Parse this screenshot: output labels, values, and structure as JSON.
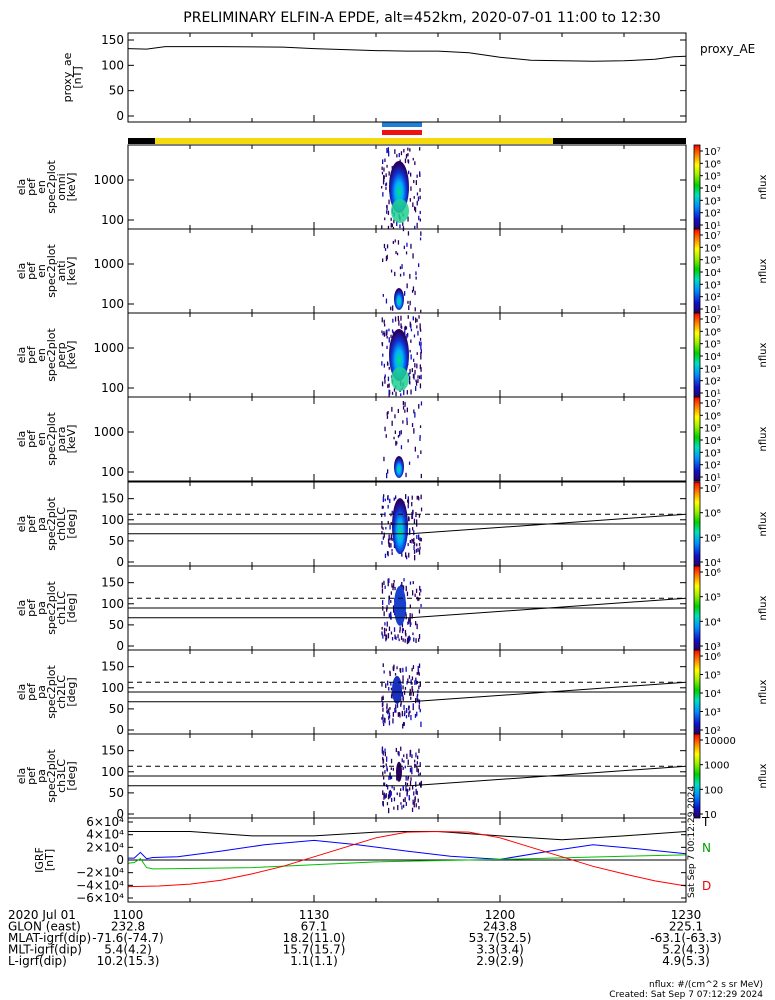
{
  "title": "PRELIMINARY ELFIN-A EPDE, alt=452km, 2020-07-01 11:00 to 12:30",
  "chart_data": {
    "type": "line",
    "x_range": [
      "11:00",
      "12:30"
    ],
    "x_ticks": [
      "1100",
      "1130",
      "1200",
      "1230"
    ],
    "panels": [
      {
        "id": "proxy_ae",
        "ylabel": [
          "proxy_ae",
          "[nT]"
        ],
        "yticks": [
          "150",
          "100",
          "50",
          "0"
        ],
        "ylim": [
          0,
          150
        ],
        "legend": "proxy_AE",
        "series": [
          {
            "name": "proxy_AE",
            "x_min": [
              0,
              3,
              6,
              15,
              25,
              30,
              40,
              45,
              50,
              55,
              60,
              65,
              70,
              75,
              80,
              85,
              88,
              90
            ],
            "values": [
              133,
              132,
              137,
              137,
              136,
              133,
              129,
              128,
              128,
              125,
              116,
              110,
              109,
              108,
              109,
              112,
              117,
              118
            ]
          }
        ]
      },
      {
        "id": "en_spec_omni",
        "ylabel": [
          "ela",
          "pef",
          "en",
          "spec2plot",
          "omni",
          "[keV]"
        ],
        "yticks": [
          "1000",
          "100"
        ],
        "cb_labels": [
          "10⁷",
          "10⁶",
          "10⁵",
          "10⁴",
          "10³",
          "10²",
          "10¹"
        ],
        "cb_title": "nflux"
      },
      {
        "id": "en_spec_anti",
        "ylabel": [
          "ela",
          "pef",
          "en",
          "spec2plot",
          "anti",
          "[keV]"
        ],
        "yticks": [
          "1000",
          "100"
        ],
        "cb_labels": [
          "10⁷",
          "10⁶",
          "10⁵",
          "10⁴",
          "10³",
          "10²",
          "10¹"
        ],
        "cb_title": "nflux"
      },
      {
        "id": "en_spec_perp",
        "ylabel": [
          "ela",
          "pef",
          "en",
          "spec2plot",
          "perp",
          "[keV]"
        ],
        "yticks": [
          "1000",
          "100"
        ],
        "cb_labels": [
          "10⁷",
          "10⁶",
          "10⁵",
          "10⁴",
          "10³",
          "10²",
          "10¹"
        ],
        "cb_title": "nflux"
      },
      {
        "id": "en_spec_para",
        "ylabel": [
          "ela",
          "pef",
          "en",
          "spec2plot",
          "para",
          "[keV]"
        ],
        "yticks": [
          "1000",
          "100"
        ],
        "cb_labels": [
          "10⁷",
          "10⁶",
          "10⁵",
          "10⁴",
          "10³",
          "10²",
          "10¹"
        ],
        "cb_title": "nflux"
      },
      {
        "id": "pa_ch0",
        "ylabel": [
          "ela",
          "pef",
          "pa",
          "spec2plot",
          "ch0LC",
          "[deg]"
        ],
        "yticks": [
          "150",
          "100",
          "50",
          "0"
        ],
        "ylim": [
          0,
          180
        ],
        "cb_labels": [
          "10⁷",
          "10⁶",
          "10⁵",
          "10⁴"
        ],
        "cb_title": "nflux"
      },
      {
        "id": "pa_ch1",
        "ylabel": [
          "ela",
          "pef",
          "pa",
          "spec2plot",
          "ch1LC",
          "[deg]"
        ],
        "yticks": [
          "150",
          "100",
          "50",
          "0"
        ],
        "ylim": [
          0,
          180
        ],
        "cb_labels": [
          "10⁶",
          "10⁵",
          "10⁴",
          "10³"
        ],
        "cb_title": "nflux"
      },
      {
        "id": "pa_ch2",
        "ylabel": [
          "ela",
          "pef",
          "pa",
          "spec2plot",
          "ch2LC",
          "[deg]"
        ],
        "yticks": [
          "150",
          "100",
          "50",
          "0"
        ],
        "ylim": [
          0,
          180
        ],
        "cb_labels": [
          "10⁶",
          "10⁵",
          "10⁴",
          "10³",
          "10²"
        ],
        "cb_title": "nflux"
      },
      {
        "id": "pa_ch3",
        "ylabel": [
          "ela",
          "pef",
          "pa",
          "spec2plot",
          "ch3LC",
          "[deg]"
        ],
        "yticks": [
          "150",
          "100",
          "50",
          "0"
        ],
        "ylim": [
          0,
          180
        ],
        "cb_labels": [
          "10000",
          "1000",
          "100",
          "10"
        ],
        "cb_title": "nflux"
      },
      {
        "id": "igrf",
        "ylabel": [
          "IGRF",
          "[nT]"
        ],
        "yticks": [
          "6×10⁴",
          "4×10⁴",
          "2×10⁴",
          "0",
          "−2×10⁴",
          "−4×10⁴",
          "−6×10⁴"
        ],
        "ylim": [
          -60000,
          60000
        ],
        "legend": [
          "T",
          "N",
          "D"
        ],
        "series": [
          {
            "name": "T",
            "color": "#000000",
            "x_min": [
              0,
              10,
              20,
              30,
              40,
              45,
              50,
              60,
              70,
              80,
              90
            ],
            "values": [
              45000,
              45000,
              38000,
              38000,
              44000,
              45000,
              45000,
              38000,
              32000,
              38000,
              45000
            ]
          },
          {
            "name": "N",
            "color": "#0000ff",
            "x_min": [
              0,
              1,
              2,
              3,
              4,
              8,
              15,
              22,
              30,
              37,
              45,
              52,
              60,
              68,
              75,
              82,
              90
            ],
            "values": [
              3000,
              3000,
              12000,
              2000,
              4000,
              5000,
              14000,
              24000,
              31000,
              24000,
              14000,
              6000,
              1000,
              14000,
              24000,
              18000,
              10000
            ]
          },
          {
            "name": "D",
            "color": "#00c000",
            "x_min": [
              0,
              1,
              2,
              3,
              4,
              5,
              20,
              40,
              60,
              80,
              90
            ],
            "values": [
              -5000,
              -4000,
              2000,
              -12000,
              -14000,
              -14000,
              -12000,
              -3000,
              1000,
              6000,
              8000
            ]
          },
          {
            "name": "",
            "color": "#ff0000",
            "x_min": [
              0,
              5,
              10,
              15,
              20,
              25,
              30,
              35,
              40,
              45,
              50,
              55,
              60,
              65,
              70,
              75,
              80,
              85,
              90
            ],
            "values": [
              -42000,
              -41000,
              -38000,
              -32000,
              -22000,
              -10000,
              5000,
              20000,
              35000,
              44000,
              45000,
              44000,
              35000,
              20000,
              5000,
              -10000,
              -22000,
              -33000,
              -41000
            ]
          }
        ]
      }
    ]
  },
  "footer": {
    "rows": [
      {
        "label": "2020 Jul 01",
        "values": [
          "1100",
          "1130",
          "1200",
          "1230"
        ]
      },
      {
        "label": "GLON (east)",
        "values": [
          "232.8",
          "67.1",
          "243.8",
          "225.1"
        ]
      },
      {
        "label": "MLAT-igrf(dip)",
        "values": [
          "-71.6(-74.7)",
          "18.2(11.0)",
          "53.7(52.5)",
          "-63.1(-63.3)"
        ]
      },
      {
        "label": "MLT-igrf(dip)",
        "values": [
          "5.4(4.2)",
          "15.7(15.7)",
          "3.3(3.4)",
          "5.2(4.3)"
        ]
      },
      {
        "label": "L-igrf(dip)",
        "values": [
          "10.2(15.3)",
          "1.1(1.1)",
          "2.9(2.9)",
          "4.9(5.3)"
        ]
      }
    ],
    "units_note": "nflux: #/(cm^2 s sr MeV)",
    "created": "Created: Sat Sep  7 07:12:29 2024",
    "side_stamp": "Sat Sep  7 00:12:29 2024"
  }
}
